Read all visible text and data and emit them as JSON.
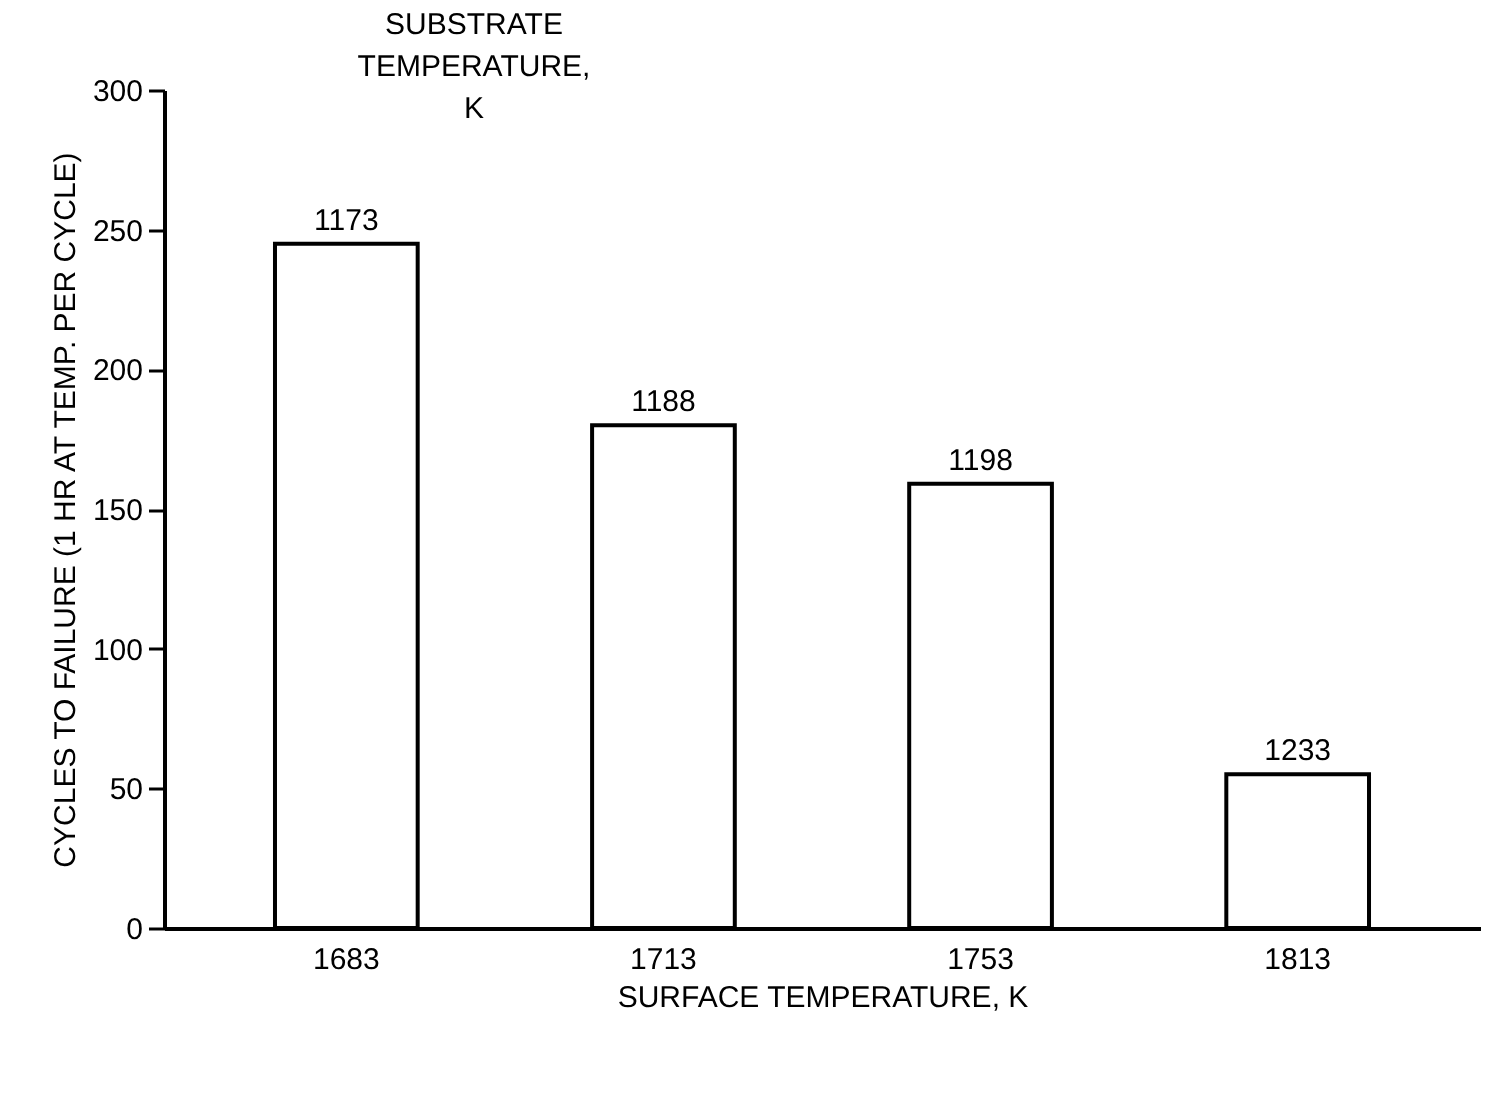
{
  "chart_data": {
    "type": "bar",
    "xlabel": "SURFACE TEMPERATURE, K",
    "ylabel": "CYCLES TO FAILURE (1 HR AT TEMP. PER CYCLE)",
    "categories": [
      "1683",
      "1713",
      "1753",
      "1813"
    ],
    "values": [
      245,
      180,
      159,
      55
    ],
    "color": "#ffffff",
    "ylim": [
      0,
      300
    ],
    "yticks": [
      0,
      50,
      100,
      150,
      200,
      250,
      300
    ],
    "grid": false,
    "annotations": [
      "SUBSTRATE TEMPERATURE, K",
      {
        "text": "1173",
        "x": "1683",
        "y": 245
      },
      {
        "text": "1188",
        "x": "1713",
        "y": 180
      },
      {
        "text": "1198",
        "x": "1753",
        "y": 159
      },
      {
        "text": "1233",
        "x": "1813",
        "y": 55
      }
    ]
  }
}
